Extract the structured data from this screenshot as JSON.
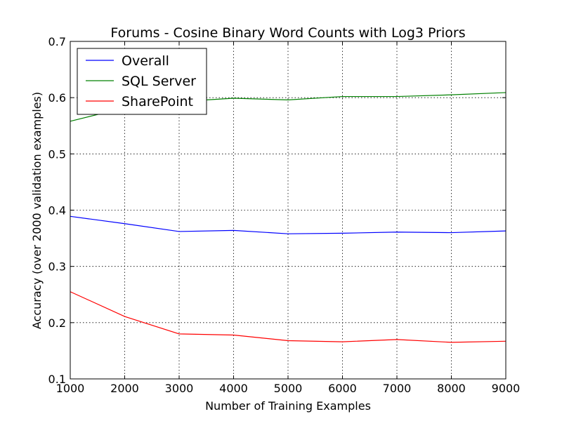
{
  "chart_data": {
    "type": "line",
    "title": "Forums - Cosine Binary Word Counts with Log3 Priors",
    "xlabel": "Number of Training Examples",
    "ylabel": "Accuracy (over 2000 validation examples)",
    "x": [
      1000,
      2000,
      3000,
      4000,
      5000,
      6000,
      7000,
      8000,
      9000
    ],
    "xlim": [
      1000,
      9000
    ],
    "ylim": [
      0.1,
      0.7
    ],
    "xticks": [
      "1000",
      "2000",
      "3000",
      "4000",
      "5000",
      "6000",
      "7000",
      "8000",
      "9000"
    ],
    "yticks": [
      "0.1",
      "0.2",
      "0.3",
      "0.4",
      "0.5",
      "0.6",
      "0.7"
    ],
    "grid": true,
    "legend_position": "top-left",
    "series": [
      {
        "name": "Overall",
        "color": "#0000ff",
        "values": [
          0.389,
          0.376,
          0.362,
          0.364,
          0.358,
          0.359,
          0.361,
          0.36,
          0.363
        ]
      },
      {
        "name": "SQL Server",
        "color": "#008000",
        "values": [
          0.558,
          0.582,
          0.593,
          0.599,
          0.596,
          0.602,
          0.602,
          0.605,
          0.609
        ]
      },
      {
        "name": "SharePoint",
        "color": "#ff0000",
        "values": [
          0.255,
          0.211,
          0.18,
          0.178,
          0.168,
          0.166,
          0.17,
          0.165,
          0.167
        ]
      }
    ]
  }
}
